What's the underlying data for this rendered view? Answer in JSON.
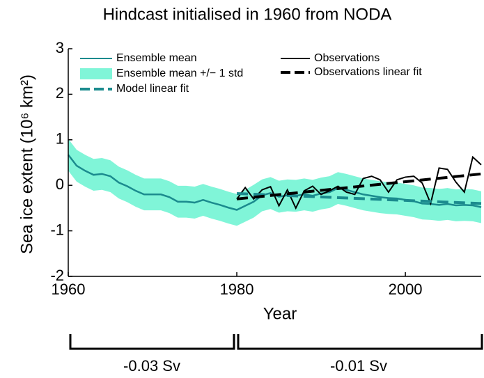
{
  "chart_data": {
    "type": "line",
    "title": "Hindcast initialised in 1960 from NODA",
    "x_label": "Year",
    "y_label": "Sea ice extent (10⁶ km²)",
    "xlim": [
      1960,
      2009
    ],
    "ylim": [
      -2,
      3
    ],
    "xticks": [
      1960,
      1980,
      2000
    ],
    "yticks": [
      -2,
      -1,
      0,
      1,
      2,
      3
    ],
    "grid": false,
    "legend": "upper left",
    "series": [
      {
        "name": "Ensemble mean",
        "color": "#1b8b8e",
        "style": "solid",
        "x": [
          1960,
          1961,
          1962,
          1963,
          1964,
          1965,
          1966,
          1967,
          1968,
          1969,
          1970,
          1971,
          1972,
          1973,
          1974,
          1975,
          1976,
          1977,
          1978,
          1979,
          1980,
          1981,
          1982,
          1983,
          1984,
          1985,
          1986,
          1987,
          1988,
          1989,
          1990,
          1991,
          1992,
          1993,
          1994,
          1995,
          1996,
          1997,
          1998,
          1999,
          2000,
          2001,
          2002,
          2003,
          2004,
          2005,
          2006,
          2007,
          2008,
          2009
        ],
        "values": [
          0.67,
          0.43,
          0.32,
          0.23,
          0.25,
          0.2,
          0.06,
          -0.02,
          -0.12,
          -0.2,
          -0.2,
          -0.2,
          -0.26,
          -0.36,
          -0.36,
          -0.38,
          -0.32,
          -0.38,
          -0.43,
          -0.49,
          -0.54,
          -0.45,
          -0.36,
          -0.22,
          -0.17,
          -0.25,
          -0.22,
          -0.23,
          -0.2,
          -0.23,
          -0.18,
          -0.15,
          -0.06,
          -0.1,
          -0.15,
          -0.2,
          -0.23,
          -0.26,
          -0.28,
          -0.29,
          -0.32,
          -0.35,
          -0.4,
          -0.41,
          -0.43,
          -0.41,
          -0.44,
          -0.43,
          -0.44,
          -0.48
        ]
      },
      {
        "name": "Ensemble mean +/− 1 std",
        "color": "#80f5d8",
        "style": "band",
        "x": [
          1960,
          1961,
          1962,
          1963,
          1964,
          1965,
          1966,
          1967,
          1968,
          1969,
          1970,
          1971,
          1972,
          1973,
          1974,
          1975,
          1976,
          1977,
          1978,
          1979,
          1980,
          1981,
          1982,
          1983,
          1984,
          1985,
          1986,
          1987,
          1988,
          1989,
          1990,
          1991,
          1992,
          1993,
          1994,
          1995,
          1996,
          1997,
          1998,
          1999,
          2000,
          2001,
          2002,
          2003,
          2004,
          2005,
          2006,
          2007,
          2008,
          2009
        ],
        "upper": [
          1.02,
          0.78,
          0.67,
          0.58,
          0.6,
          0.55,
          0.41,
          0.33,
          0.23,
          0.15,
          0.15,
          0.15,
          0.09,
          -0.01,
          -0.01,
          -0.03,
          0.03,
          -0.03,
          -0.08,
          -0.14,
          -0.19,
          -0.1,
          0.01,
          0.13,
          0.18,
          0.1,
          0.13,
          0.12,
          0.15,
          0.12,
          0.17,
          0.2,
          0.29,
          0.25,
          0.2,
          0.15,
          0.12,
          0.09,
          0.07,
          0.06,
          0.03,
          0,
          -0.05,
          -0.06,
          -0.08,
          -0.06,
          -0.09,
          -0.08,
          -0.09,
          -0.13
        ],
        "lower": [
          0.32,
          0.08,
          -0.03,
          -0.12,
          -0.1,
          -0.15,
          -0.29,
          -0.37,
          -0.47,
          -0.55,
          -0.55,
          -0.55,
          -0.61,
          -0.71,
          -0.71,
          -0.73,
          -0.67,
          -0.73,
          -0.78,
          -0.84,
          -0.89,
          -0.8,
          -0.71,
          -0.57,
          -0.52,
          -0.6,
          -0.57,
          -0.58,
          -0.55,
          -0.58,
          -0.53,
          -0.5,
          -0.41,
          -0.45,
          -0.5,
          -0.55,
          -0.58,
          -0.61,
          -0.63,
          -0.64,
          -0.67,
          -0.7,
          -0.75,
          -0.76,
          -0.78,
          -0.76,
          -0.79,
          -0.78,
          -0.79,
          -0.83
        ]
      },
      {
        "name": "Model linear fit",
        "color": "#1b8b8e",
        "style": "dashed",
        "x": [
          1980,
          2009
        ],
        "values": [
          -0.18,
          -0.4
        ]
      },
      {
        "name": "Observations",
        "color": "#000000",
        "style": "solid",
        "x": [
          1980,
          1981,
          1982,
          1983,
          1984,
          1985,
          1986,
          1987,
          1988,
          1989,
          1990,
          1991,
          1992,
          1993,
          1994,
          1995,
          1996,
          1997,
          1998,
          1999,
          2000,
          2001,
          2002,
          2003,
          2004,
          2005,
          2006,
          2007,
          2008,
          2009
        ],
        "values": [
          -0.3,
          -0.05,
          -0.3,
          -0.1,
          -0.03,
          -0.45,
          -0.1,
          -0.5,
          -0.12,
          -0.02,
          -0.2,
          -0.12,
          -0.02,
          -0.15,
          -0.2,
          0.15,
          0.2,
          0.12,
          -0.15,
          0.12,
          0.18,
          0.2,
          0.05,
          -0.4,
          0.38,
          0.35,
          0.07,
          -0.15,
          0.62,
          0.45
        ]
      },
      {
        "name": "Observations linear fit",
        "color": "#000000",
        "style": "dashed",
        "x": [
          1980,
          2009
        ],
        "values": [
          -0.3,
          0.25
        ]
      }
    ],
    "annotations": [
      "-0.03 Sv",
      "-0.01 Sv"
    ]
  }
}
